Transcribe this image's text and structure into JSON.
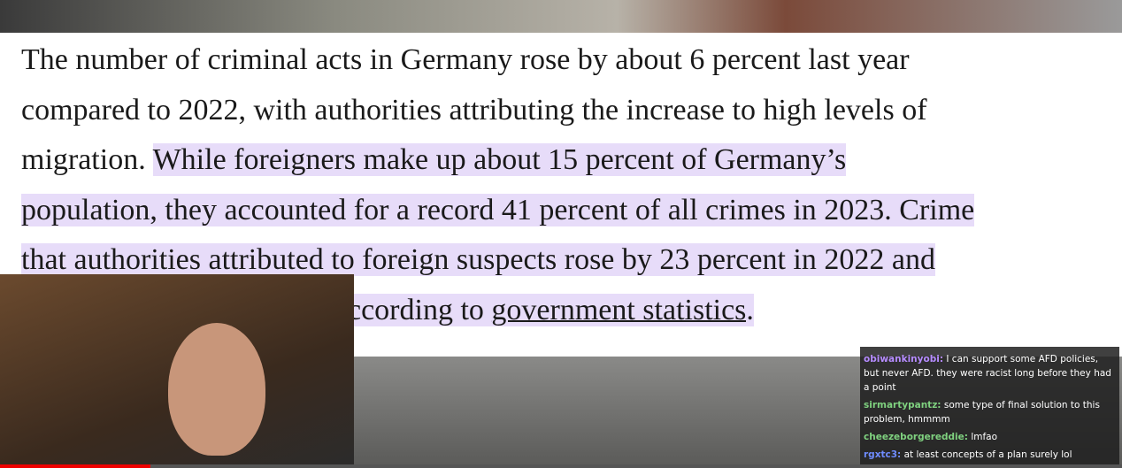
{
  "article": {
    "lines": [
      [
        {
          "text": "The number of criminal acts in Germany rose by about 6 percent last year",
          "style": "plain"
        }
      ],
      [
        {
          "text": "compared to 2022, with authorities attributing the increase to high levels of",
          "style": "plain"
        }
      ],
      [
        {
          "text": "migration. ",
          "style": "plain"
        },
        {
          "text": "While foreigners make up about 15 percent of Germany’s",
          "style": "highlight"
        }
      ],
      [
        {
          "text": "population, they accounted for a record 41 percent of all crimes in 2023. Crime",
          "style": "highlight"
        }
      ],
      [
        {
          "text": "that authorities attributed to foreign suspects rose by 23 percent in 2022 and",
          "style": "highlight"
        }
      ],
      [
        {
          "text": "ccording to ",
          "style": "highlight"
        },
        {
          "text": "government statistics",
          "style": "highlight-link"
        },
        {
          "text": ".",
          "style": "highlight"
        }
      ]
    ]
  },
  "chat": {
    "messages": [
      {
        "user": "obiwankinyobi:",
        "user_color": "#b68cff",
        "text": "I can support some AFD policies, but never AFD. they were racist long before they had a point"
      },
      {
        "user": "sirmartypantz:",
        "user_color": "#7fd17f",
        "text": "some type of final solution to this problem, hmmmm"
      },
      {
        "user": "cheezeborgereddie:",
        "user_color": "#7fd17f",
        "text": "lmfao"
      },
      {
        "user": "rgxtc3:",
        "user_color": "#6f8cff",
        "text": "at least concepts of a plan surely lol"
      }
    ]
  }
}
